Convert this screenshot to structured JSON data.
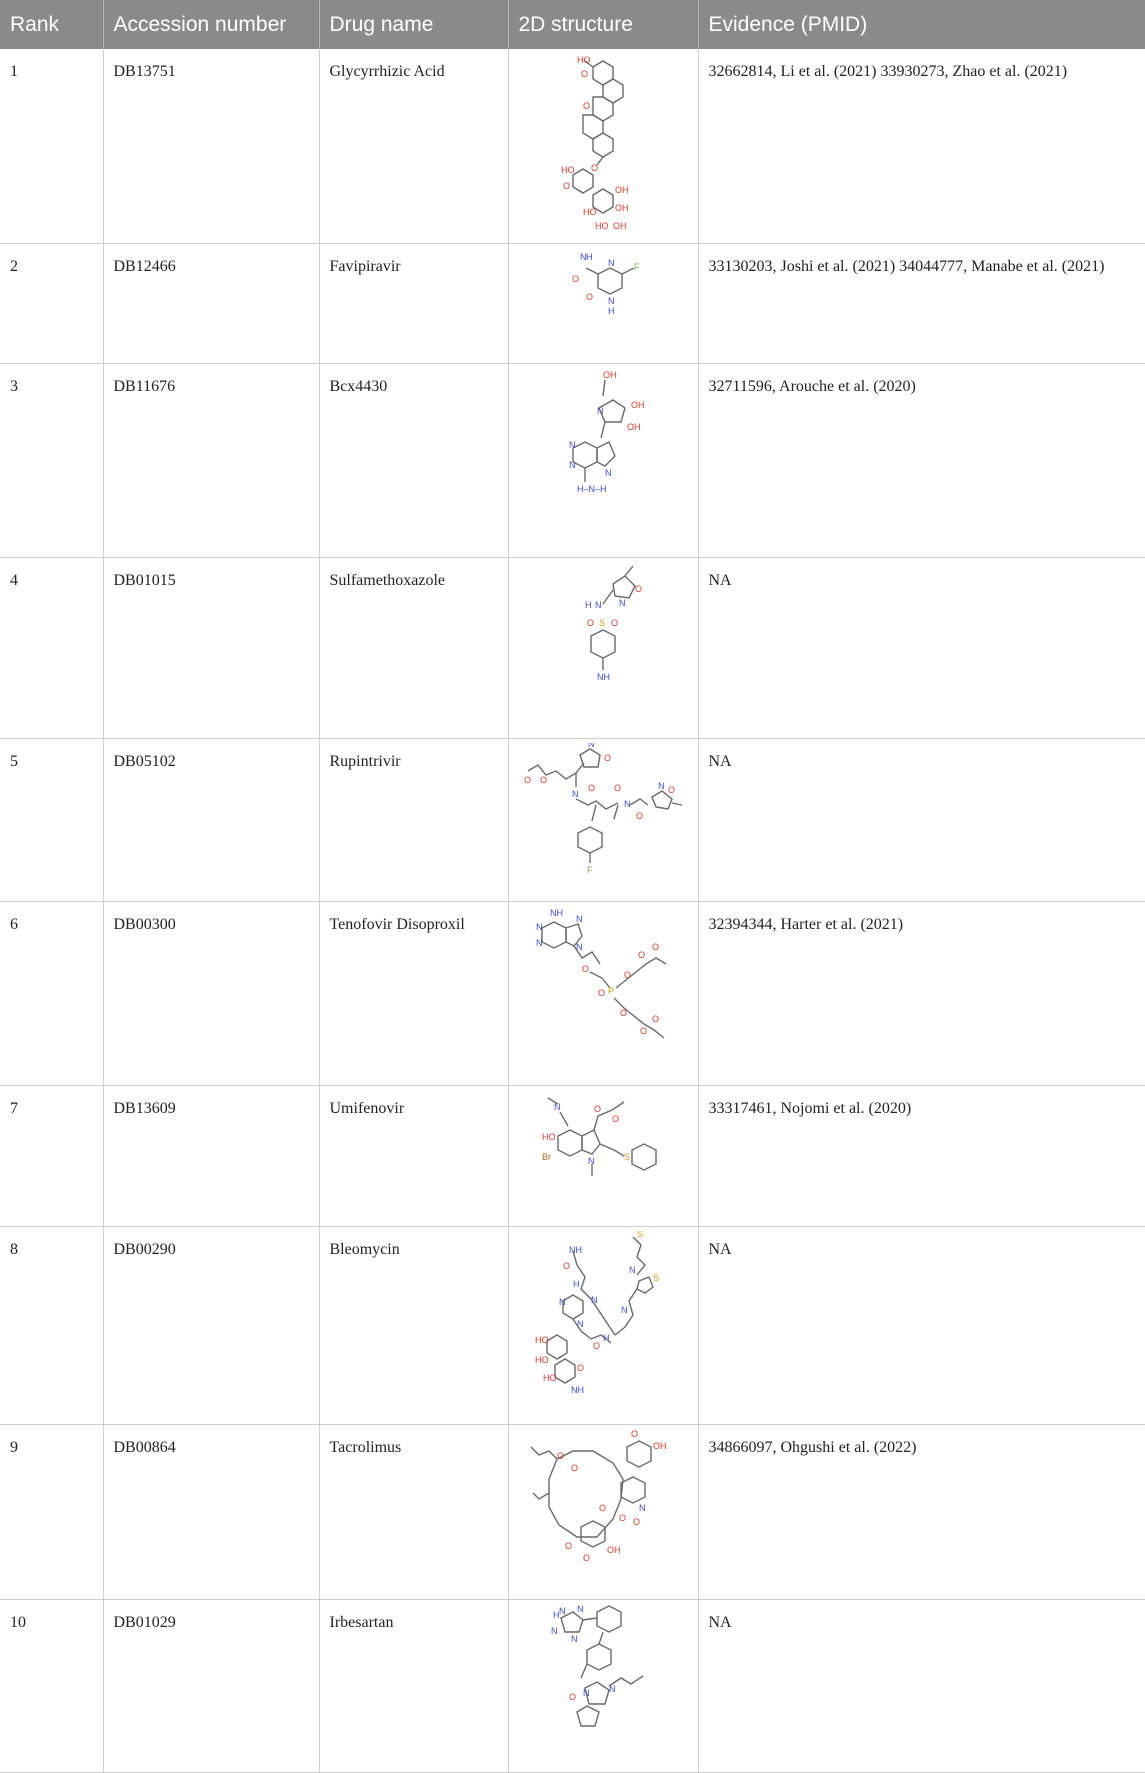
{
  "table": {
    "headers": [
      "Rank",
      "Accession number",
      "Drug name",
      "2D structure",
      "Evidence (PMID)"
    ],
    "rows": [
      {
        "rank": "1",
        "accession": "DB13751",
        "drug": "Glycyrrhizic Acid",
        "evidence": "32662814, Li et al. (2021) 33930273, Zhao et al. (2021)"
      },
      {
        "rank": "2",
        "accession": "DB12466",
        "drug": "Favipiravir",
        "evidence": "33130203, Joshi et al. (2021) 34044777, Manabe et al. (2021)"
      },
      {
        "rank": "3",
        "accession": "DB11676",
        "drug": "Bcx4430",
        "evidence": "32711596, Arouche et al. (2020)"
      },
      {
        "rank": "4",
        "accession": "DB01015",
        "drug": "Sulfamethoxazole",
        "evidence": "NA"
      },
      {
        "rank": "5",
        "accession": "DB05102",
        "drug": "Rupintrivir",
        "evidence": "NA"
      },
      {
        "rank": "6",
        "accession": "DB00300",
        "drug": "Tenofovir Disoproxil",
        "evidence": "32394344, Harter et al. (2021)"
      },
      {
        "rank": "7",
        "accession": "DB13609",
        "drug": "Umifenovir",
        "evidence": "33317461, Nojomi et al. (2020)"
      },
      {
        "rank": "8",
        "accession": "DB00290",
        "drug": "Bleomycin",
        "evidence": "NA"
      },
      {
        "rank": "9",
        "accession": "DB00864",
        "drug": "Tacrolimus",
        "evidence": "34866097, Ohgushi et al. (2022)"
      },
      {
        "rank": "10",
        "accession": "DB01029",
        "drug": "Irbesartan",
        "evidence": "NA"
      }
    ]
  }
}
